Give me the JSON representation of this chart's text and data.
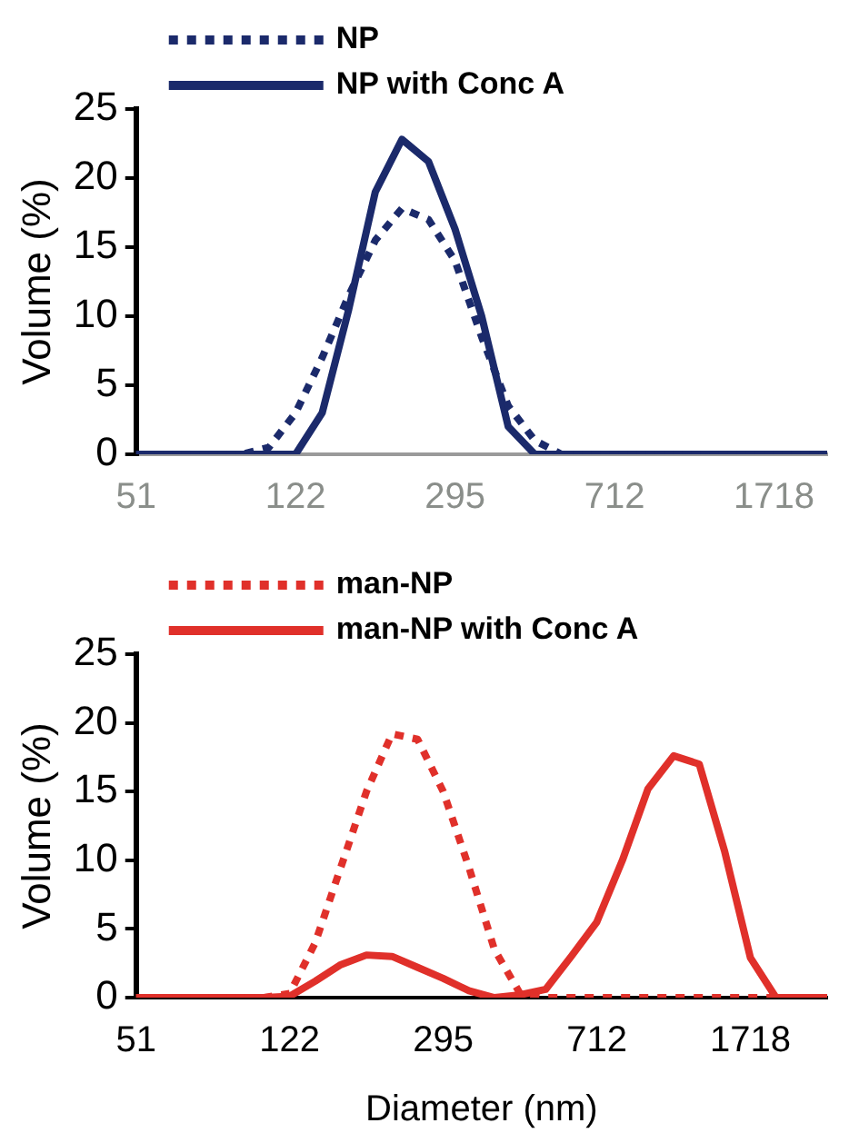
{
  "chart_data": [
    {
      "type": "line",
      "ylabel": "Volume (%)",
      "categories": [
        "51",
        null,
        null,
        null,
        null,
        null,
        "122",
        null,
        null,
        null,
        null,
        null,
        "295",
        null,
        null,
        null,
        null,
        null,
        "712",
        null,
        null,
        null,
        null,
        null,
        "1718",
        null,
        null
      ],
      "ylim": [
        0,
        25
      ],
      "yticks": [
        0,
        5,
        10,
        15,
        20,
        25
      ],
      "legend": "top",
      "marker": "none",
      "grid": false,
      "series": [
        {
          "name": "NP",
          "color": "#1b2a6b",
          "line_style": "dotted",
          "values": [
            0,
            0,
            0,
            0,
            0,
            0.5,
            3,
            7,
            11.5,
            15.5,
            17.8,
            17,
            14,
            8.5,
            3.5,
            1,
            0,
            0,
            0,
            0,
            0,
            0,
            0,
            0,
            0,
            0,
            0
          ]
        },
        {
          "name": "NP with Conc A",
          "color": "#1b2a6b",
          "line_style": "solid",
          "values": [
            0,
            0,
            0,
            0,
            0,
            0,
            0,
            3,
            10.5,
            19,
            22.8,
            21.2,
            16.3,
            10,
            2,
            0,
            0,
            0,
            0,
            0,
            0,
            0,
            0,
            0,
            0,
            0,
            0
          ]
        }
      ]
    },
    {
      "type": "line",
      "xlabel": "Diameter (nm)",
      "ylabel": "Volume (%)",
      "categories": [
        "51",
        null,
        null,
        null,
        null,
        null,
        "122",
        null,
        null,
        null,
        null,
        null,
        "295",
        null,
        null,
        null,
        null,
        null,
        "712",
        null,
        null,
        null,
        null,
        null,
        "1718",
        null,
        null,
        null
      ],
      "ylim": [
        0,
        25
      ],
      "yticks": [
        0,
        5,
        10,
        15,
        20,
        25
      ],
      "legend": "top",
      "marker": "none",
      "grid": false,
      "series": [
        {
          "name": "man-NP",
          "color": "#e0302a",
          "line_style": "dotted",
          "values": [
            0,
            0,
            0,
            0,
            0,
            0,
            0.3,
            4,
            9.5,
            15,
            19.2,
            18.8,
            15,
            9.5,
            3.5,
            0.3,
            0,
            0,
            0,
            0,
            0,
            0,
            0,
            0,
            0,
            0,
            0,
            0
          ]
        },
        {
          "name": "man-NP with Conc A",
          "color": "#e0302a",
          "line_style": "solid",
          "values": [
            0,
            0,
            0,
            0,
            0,
            0,
            0.1,
            1.2,
            2.4,
            3.1,
            3,
            2.2,
            1.4,
            0.5,
            0,
            0.2,
            0.6,
            3,
            5.5,
            10,
            15.2,
            17.6,
            17,
            10.6,
            2.9,
            0,
            0,
            0
          ]
        }
      ]
    }
  ]
}
